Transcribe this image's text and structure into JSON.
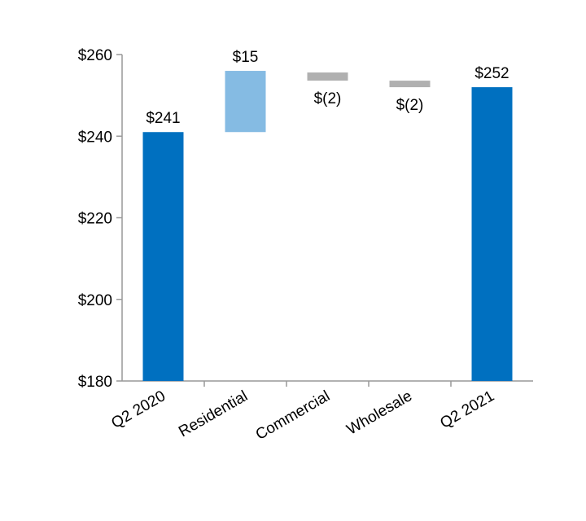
{
  "chart_data": {
    "type": "bar",
    "subtype": "waterfall",
    "categories": [
      "Q2 2020",
      "Residential",
      "Commercial",
      "Wholesale",
      "Q2 2021"
    ],
    "bars": [
      {
        "kind": "total",
        "start": 180,
        "end": 241,
        "label": "$241",
        "color": "#0070c0"
      },
      {
        "kind": "delta",
        "start": 241,
        "end": 256,
        "label": "$15",
        "color": "#85bbe3"
      },
      {
        "kind": "delta",
        "start": 255.6,
        "end": 253.6,
        "label": "$(2)",
        "color": "#b0b0b0"
      },
      {
        "kind": "delta",
        "start": 253.6,
        "end": 252,
        "label": "$(2)",
        "color": "#b0b0b0"
      },
      {
        "kind": "total",
        "start": 180,
        "end": 252,
        "label": "$252",
        "color": "#0070c0"
      }
    ],
    "ylim": [
      180,
      260
    ],
    "yticks": [
      180,
      200,
      220,
      240,
      260
    ],
    "ytick_labels": [
      "$180",
      "$200",
      "$220",
      "$240",
      "$260"
    ],
    "grid": false,
    "axis_color": "#999999"
  }
}
